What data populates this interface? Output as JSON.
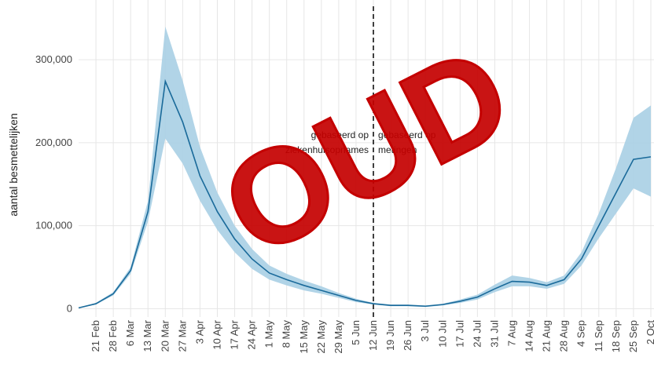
{
  "chart_data": {
    "type": "line",
    "y_label": "aantal besmettelijken",
    "categories": [
      null,
      "21 Feb",
      "28 Feb",
      "6 Mar",
      "13 Mar",
      "20 Mar",
      "27 Mar",
      "3 Apr",
      "10 Apr",
      "17 Apr",
      "24 Apr",
      "1 May",
      "8 May",
      "15 May",
      "22 May",
      "29 May",
      "5 Jun",
      "12 Jun",
      "19 Jun",
      "26 Jun",
      "3 Jul",
      "10 Jul",
      "17 Jul",
      "24 Jul",
      "31 Jul",
      "7 Aug",
      "14 Aug",
      "21 Aug",
      "28 Aug",
      "4 Sep",
      "11 Sep",
      "18 Sep",
      "25 Sep",
      "2 Oct"
    ],
    "values": [
      1000,
      6000,
      18000,
      46000,
      117000,
      274000,
      225000,
      160000,
      117000,
      84000,
      60000,
      43000,
      35000,
      28000,
      22000,
      16000,
      10000,
      6000,
      4000,
      4000,
      3000,
      5000,
      9000,
      14000,
      24000,
      33000,
      32000,
      28000,
      35000,
      60000,
      100000,
      140000,
      180000,
      183000
    ],
    "lower": [
      1000,
      5000,
      16000,
      42000,
      105000,
      205000,
      175000,
      130000,
      95000,
      68000,
      48000,
      35000,
      28000,
      22000,
      18000,
      13000,
      8000,
      5000,
      3000,
      3000,
      2000,
      4000,
      7000,
      11000,
      20000,
      27000,
      27000,
      24000,
      30000,
      52000,
      85000,
      115000,
      145000,
      135000
    ],
    "upper": [
      1000,
      7000,
      20000,
      50000,
      130000,
      340000,
      275000,
      195000,
      140000,
      100000,
      72000,
      52000,
      42000,
      34000,
      27000,
      19000,
      12000,
      7000,
      5000,
      5000,
      4000,
      6000,
      11000,
      17000,
      29000,
      40000,
      37000,
      32000,
      40000,
      68000,
      115000,
      170000,
      230000,
      245000
    ],
    "color": "#1a6a9a",
    "band_color": "#a9cfe4",
    "ylim": [
      -10000,
      372000
    ],
    "yticks": [
      0,
      {
        "value": 100000,
        "label": "100,000"
      },
      {
        "value": 200000,
        "label": "200,000"
      },
      {
        "value": 300000,
        "label": "300,000"
      }
    ],
    "grid": true,
    "divider_at": "12 Jun",
    "annotations": [
      {
        "lines": [
          "gebaseerd op",
          "ziekenhuisopnames"
        ]
      },
      {
        "lines": [
          "gebaseerd op",
          "metingen"
        ]
      }
    ],
    "stamp": "OUD",
    "stamp_color": "#c40000"
  }
}
